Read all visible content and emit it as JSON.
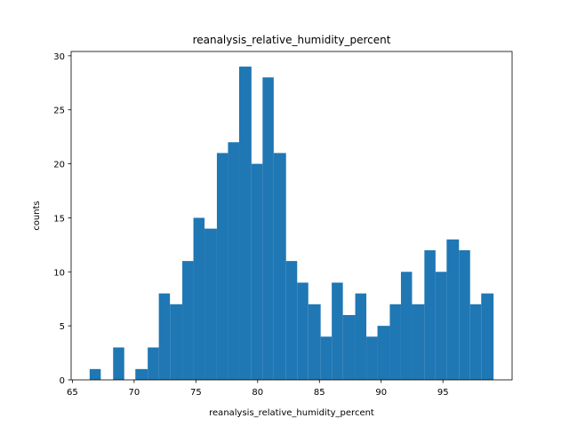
{
  "chart_data": {
    "type": "bar",
    "title": "reanalysis_relative_humidity_percent",
    "xlabel": "reanalysis_relative_humidity_percent",
    "ylabel": "counts",
    "bin_edges": [
      65.0,
      66.0,
      67.0,
      68.0,
      69.0,
      70.0,
      71.0,
      72.0,
      73.0,
      74.0,
      75.0,
      76.0,
      77.0,
      78.0,
      79.0,
      80.0,
      81.0,
      82.0,
      83.0,
      84.0,
      85.0,
      86.0,
      87.0,
      88.0,
      89.0,
      90.0,
      91.0,
      92.0,
      93.0,
      94.0,
      95.0,
      96.0,
      97.0,
      98.0
    ],
    "histogram_bins": [
      {
        "x0": 66.4,
        "x1": 67.3,
        "count": 1
      },
      {
        "x0": 67.3,
        "x1": 68.3,
        "count": 0
      },
      {
        "x0": 68.3,
        "x1": 69.2,
        "count": 3
      },
      {
        "x0": 69.2,
        "x1": 70.1,
        "count": 0
      },
      {
        "x0": 70.1,
        "x1": 71.1,
        "count": 1
      },
      {
        "x0": 71.1,
        "x1": 72.0,
        "count": 3
      },
      {
        "x0": 72.0,
        "x1": 72.9,
        "count": 8
      },
      {
        "x0": 72.9,
        "x1": 73.9,
        "count": 7
      },
      {
        "x0": 73.9,
        "x1": 74.8,
        "count": 11
      },
      {
        "x0": 74.8,
        "x1": 75.7,
        "count": 15
      },
      {
        "x0": 75.7,
        "x1": 76.7,
        "count": 14
      },
      {
        "x0": 76.7,
        "x1": 77.6,
        "count": 21
      },
      {
        "x0": 77.6,
        "x1": 78.5,
        "count": 22
      },
      {
        "x0": 78.5,
        "x1": 79.5,
        "count": 29
      },
      {
        "x0": 79.5,
        "x1": 80.4,
        "count": 20
      },
      {
        "x0": 80.4,
        "x1": 81.3,
        "count": 28
      },
      {
        "x0": 81.3,
        "x1": 82.3,
        "count": 21
      },
      {
        "x0": 82.3,
        "x1": 83.2,
        "count": 11
      },
      {
        "x0": 83.2,
        "x1": 84.1,
        "count": 9
      },
      {
        "x0": 84.1,
        "x1": 85.1,
        "count": 7
      },
      {
        "x0": 85.1,
        "x1": 86.0,
        "count": 4
      },
      {
        "x0": 86.0,
        "x1": 86.9,
        "count": 9
      },
      {
        "x0": 86.9,
        "x1": 87.9,
        "count": 6
      },
      {
        "x0": 87.9,
        "x1": 88.8,
        "count": 8
      },
      {
        "x0": 88.8,
        "x1": 89.7,
        "count": 4
      },
      {
        "x0": 89.7,
        "x1": 90.7,
        "count": 5
      },
      {
        "x0": 90.7,
        "x1": 91.6,
        "count": 7
      },
      {
        "x0": 91.6,
        "x1": 92.5,
        "count": 10
      },
      {
        "x0": 92.5,
        "x1": 93.5,
        "count": 7
      },
      {
        "x0": 93.5,
        "x1": 94.4,
        "count": 12
      },
      {
        "x0": 94.4,
        "x1": 95.3,
        "count": 10
      },
      {
        "x0": 95.3,
        "x1": 96.3,
        "count": 13
      },
      {
        "x0": 96.3,
        "x1": 97.2,
        "count": 12
      },
      {
        "x0": 97.2,
        "x1": 98.1,
        "count": 7
      },
      {
        "x0": 98.1,
        "x1": 99.1,
        "count": 8
      }
    ],
    "xlim": [
      64.9,
      100.6
    ],
    "ylim": [
      0,
      30.4
    ],
    "xticks": [
      65,
      70,
      75,
      80,
      85,
      90,
      95
    ],
    "yticks": [
      0,
      5,
      10,
      15,
      20,
      25,
      30
    ],
    "bar_color": "#1f77b4",
    "grid": false,
    "legend": "none"
  }
}
